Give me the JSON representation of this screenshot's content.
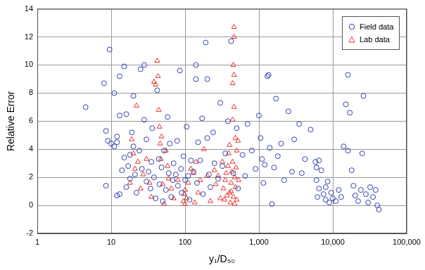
{
  "chart_data": {
    "type": "scatter",
    "x_label": "y₁/D₅₀",
    "y_label": "Relative Error",
    "log": "x",
    "grid": true,
    "legend": "top right",
    "xlim": [
      1,
      100000
    ],
    "xticks": [
      1,
      10,
      100,
      {
        "value": 1000,
        "label": "1,000"
      },
      {
        "value": 10000,
        "label": "10,000"
      },
      {
        "value": 100000,
        "label": "100,000"
      }
    ],
    "ylim": [
      -2,
      14
    ],
    "yticks": [
      -2,
      0,
      2,
      4,
      6,
      8,
      10,
      12,
      14
    ],
    "series": [
      {
        "name": "Field data",
        "color": "#2f3fb0",
        "marker": "circle",
        "x": [
          4.5,
          8,
          9.5,
          8.5,
          9,
          8.5,
          10,
          11,
          11,
          12,
          12,
          12,
          13,
          13,
          13,
          14,
          15,
          15,
          16,
          16,
          17,
          18,
          18,
          19,
          20,
          20,
          21,
          22,
          24,
          25,
          26,
          28,
          28,
          30,
          30,
          32,
          34,
          35,
          36,
          38,
          40,
          42,
          44,
          45,
          48,
          50,
          52,
          55,
          58,
          60,
          62,
          65,
          68,
          70,
          75,
          78,
          80,
          85,
          88,
          90,
          95,
          100,
          105,
          110,
          115,
          120,
          130,
          140,
          140,
          145,
          150,
          160,
          170,
          175,
          190,
          200,
          200,
          210,
          220,
          240,
          250,
          280,
          300,
          320,
          350,
          380,
          420,
          450,
          500,
          520,
          600,
          650,
          700,
          800,
          900,
          1000,
          1050,
          1100,
          1150,
          1200,
          1300,
          1350,
          1400,
          1500,
          1600,
          1700,
          1800,
          2000,
          2200,
          2500,
          2800,
          3000,
          3500,
          3800,
          4200,
          5000,
          5800,
          6000,
          6000,
          6200,
          6500,
          6500,
          7000,
          7500,
          8000,
          8000,
          8500,
          9000,
          9500,
          10000,
          11000,
          12000,
          13000,
          14000,
          15000,
          16000,
          16000,
          17000,
          18000,
          19000,
          22000,
          25000,
          26000,
          28000,
          30000,
          32000,
          35000,
          38000,
          40000,
          42000,
          24000,
          20000
        ],
        "values": [
          7,
          8.7,
          11.1,
          5.3,
          4.6,
          1.4,
          4.4,
          8,
          4.2,
          4.9,
          4.5,
          0.7,
          0.8,
          6.4,
          9.2,
          2.5,
          3.4,
          9.9,
          6.5,
          1.3,
          2.8,
          3.6,
          1.9,
          5.2,
          7.8,
          4.2,
          2.2,
          0.9,
          3.9,
          9.7,
          2.6,
          10,
          6.1,
          1.7,
          4.7,
          2.4,
          1.2,
          3.1,
          5.5,
          2,
          0.5,
          8.2,
          3.3,
          1.5,
          2.7,
          0.3,
          3.9,
          1.1,
          6.3,
          2.3,
          4.4,
          0.6,
          1.8,
          3,
          2.2,
          4.6,
          1.4,
          9.6,
          2.6,
          0.9,
          3.5,
          1.8,
          5.6,
          2.1,
          0.4,
          3.2,
          2.4,
          10,
          9,
          1.6,
          4.5,
          3.2,
          6.2,
          0.8,
          11.6,
          4.8,
          9,
          2.2,
          1.3,
          5.2,
          3,
          1.9,
          7.3,
          2.8,
          3.7,
          6,
          11.7,
          2.3,
          5.5,
          1.2,
          3.6,
          2.1,
          5.8,
          3.9,
          2.6,
          6.4,
          4.8,
          3.3,
          1.6,
          2.9,
          9.2,
          9.3,
          4.1,
          0.1,
          2.7,
          7.6,
          3.5,
          4.4,
          1.8,
          6.7,
          2.4,
          4.7,
          5.8,
          2.3,
          3.3,
          5.4,
          3.1,
          2.7,
          1.8,
          0.6,
          3.2,
          1.2,
          2.5,
          0.8,
          1.3,
          0.4,
          1.7,
          0.2,
          0.9,
          0.5,
          0.3,
          1.1,
          0.6,
          4.2,
          7.2,
          9.3,
          3.9,
          6.6,
          2.5,
          1.4,
          0.3,
          3.7,
          7.8,
          0.8,
          0.2,
          1.3,
          0.6,
          1.1,
          0,
          -0.3,
          1.1,
          0.7
        ]
      },
      {
        "name": "Lab data",
        "color": "#e8302a",
        "marker": "triangle",
        "x": [
          18,
          19,
          20,
          21,
          22,
          23,
          25,
          27,
          30,
          33,
          35,
          38,
          40,
          42,
          43,
          44,
          45,
          46,
          47,
          48,
          50,
          52,
          55,
          58,
          60,
          65,
          70,
          80,
          95,
          98,
          100,
          100,
          105,
          110,
          120,
          130,
          135,
          140,
          150,
          160,
          180,
          200,
          220,
          250,
          260,
          280,
          300,
          320,
          330,
          350,
          370,
          380,
          390,
          400,
          410,
          420,
          420,
          430,
          440,
          440,
          440,
          450,
          450,
          460,
          460,
          460,
          460,
          470,
          470,
          480,
          480,
          490,
          500,
          500,
          520,
          530,
          400,
          360,
          340
        ],
        "values": [
          1.6,
          4.7,
          3.7,
          2.6,
          7.1,
          3.1,
          1.2,
          2.2,
          3.3,
          1.6,
          0.6,
          8.8,
          8.6,
          10.3,
          9.2,
          6.8,
          5.6,
          4.4,
          3.3,
          4.9,
          1.5,
          0.1,
          3.9,
          2.8,
          1.9,
          1.2,
          0.5,
          1.8,
          0.3,
          0.8,
          1.1,
          0.1,
          0.5,
          1.6,
          2.6,
          2.3,
          0.2,
          3.1,
          0.9,
          1.8,
          4,
          2.1,
          0.3,
          2.5,
          1.5,
          2.1,
          0.5,
          3.1,
          1.2,
          1.8,
          0.7,
          2.8,
          3.7,
          4.3,
          0.2,
          1,
          1.6,
          2.4,
          3.1,
          6.1,
          8.7,
          0.6,
          10,
          12.7,
          12,
          7,
          9.3,
          2,
          0.1,
          4.8,
          1.3,
          2.7,
          3.9,
          0.4,
          4.6,
          1.8,
          0.9,
          2.3,
          0.4
        ]
      }
    ]
  }
}
